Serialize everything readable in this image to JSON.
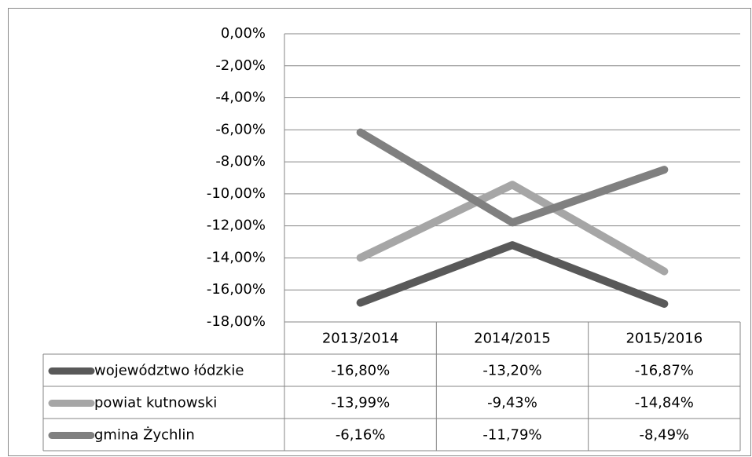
{
  "chart_data": {
    "type": "line",
    "categories": [
      "2013/2014",
      "2014/2015",
      "2015/2016"
    ],
    "series": [
      {
        "name": "województwo łódzkie",
        "color": "#595959",
        "values": [
          -16.8,
          -13.2,
          -16.87
        ],
        "value_labels": [
          "-16,80%",
          "-13,20%",
          "-16,87%"
        ]
      },
      {
        "name": "powiat kutnowski",
        "color": "#a6a6a6",
        "values": [
          -13.99,
          -9.43,
          -14.84
        ],
        "value_labels": [
          "-13,99%",
          "-9,43%",
          "-14,84%"
        ]
      },
      {
        "name": "gmina Żychlin",
        "color": "#808080",
        "values": [
          -6.16,
          -11.79,
          -8.49
        ],
        "value_labels": [
          "-6,16%",
          "-11,79%",
          "-8,49%"
        ]
      }
    ],
    "ylim": [
      -18,
      0
    ],
    "yticks": [
      {
        "value": 0,
        "label": "0,00%"
      },
      {
        "value": -2,
        "label": "-2,00%"
      },
      {
        "value": -4,
        "label": "-4,00%"
      },
      {
        "value": -6,
        "label": "-6,00%"
      },
      {
        "value": -8,
        "label": "-8,00%"
      },
      {
        "value": -10,
        "label": "-10,00%"
      },
      {
        "value": -12,
        "label": "-12,00%"
      },
      {
        "value": -14,
        "label": "-14,00%"
      },
      {
        "value": -16,
        "label": "-16,00%"
      },
      {
        "value": -18,
        "label": "-18,00%"
      }
    ],
    "grid": true
  }
}
